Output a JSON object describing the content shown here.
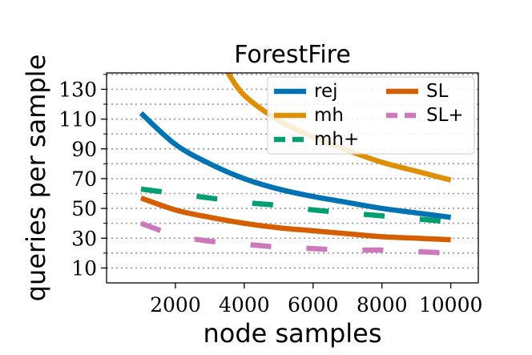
{
  "chart_data": {
    "type": "line",
    "title": "ForestFire",
    "xlabel": "node samples",
    "ylabel": "queries per sample",
    "xlim": [
      0,
      10800
    ],
    "ylim": [
      0,
      141
    ],
    "x_ticks": [
      2000,
      4000,
      6000,
      8000,
      10000
    ],
    "x_tick_labels": [
      "2000",
      "4000",
      "6000",
      "8000",
      "10000"
    ],
    "y_ticks": [
      10,
      30,
      50,
      70,
      90,
      110,
      130
    ],
    "y_tick_labels": [
      "10",
      "30",
      "50",
      "70",
      "90",
      "110",
      "130"
    ],
    "y_minor_ticks": [
      20,
      40,
      60,
      80,
      100,
      120,
      140
    ],
    "grid": "horizontal dotted",
    "legend": {
      "placement": "top-right",
      "columns": 2
    },
    "series": [
      {
        "name": "rej",
        "color": "#0173b2",
        "style": "solid",
        "x": [
          1000,
          2000,
          3000,
          4000,
          5000,
          6000,
          7000,
          8000,
          9000,
          10000
        ],
        "y": [
          114,
          93,
          80,
          70,
          63,
          58,
          54,
          50,
          47,
          44
        ]
      },
      {
        "name": "mh",
        "color": "#de8f05",
        "style": "solid",
        "x": [
          3500,
          4000,
          5000,
          6000,
          7000,
          8000,
          9000,
          10000
        ],
        "y": [
          142,
          126,
          109,
          98,
          89,
          81,
          75,
          69
        ]
      },
      {
        "name": "mh+",
        "color": "#029e73",
        "style": "dashed",
        "x": [
          1000,
          2000,
          3000,
          4000,
          5000,
          6000,
          7000,
          8000,
          9000,
          10000
        ],
        "y": [
          63,
          60,
          57,
          54,
          52,
          49,
          47,
          45,
          43,
          41
        ]
      },
      {
        "name": "SL",
        "color": "#d55e00",
        "style": "solid",
        "x": [
          1000,
          2000,
          3000,
          4000,
          5000,
          6000,
          7000,
          8000,
          9000,
          10000
        ],
        "y": [
          57,
          49,
          44,
          40,
          37,
          35,
          33,
          31,
          30,
          29
        ]
      },
      {
        "name": "SL+",
        "color": "#cc78bc",
        "style": "dashed",
        "x": [
          1000,
          2000,
          3000,
          4000,
          5000,
          6000,
          7000,
          8000,
          9000,
          10000
        ],
        "y": [
          40,
          32,
          28,
          26,
          24,
          23,
          22,
          22,
          21,
          20
        ]
      }
    ]
  }
}
